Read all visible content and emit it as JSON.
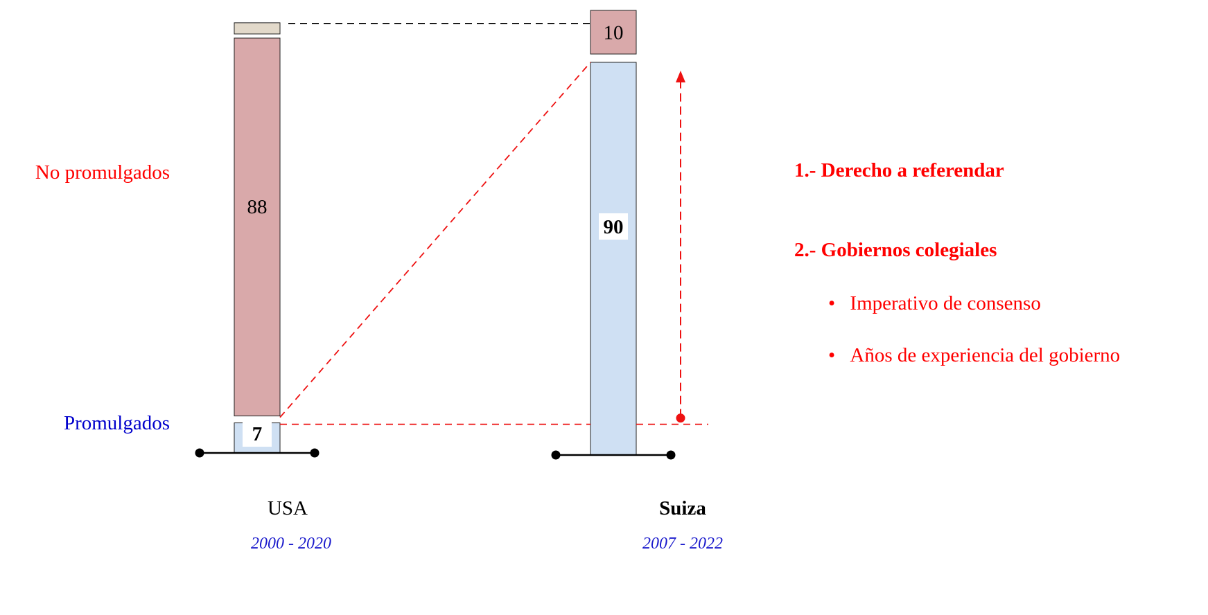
{
  "chart_data": {
    "type": "bar",
    "stacked": true,
    "categories": [
      "USA",
      "Suiza"
    ],
    "periods": [
      "2000 - 2020",
      "2007 - 2022"
    ],
    "series": [
      {
        "name": "Promulgados",
        "values": [
          7,
          90
        ],
        "color": "#cfe0f3"
      },
      {
        "name": "No promulgados",
        "values": [
          88,
          10
        ],
        "color": "#d9a9aa"
      }
    ],
    "remainder": {
      "values": [
        5,
        0
      ],
      "color": "#e2d9ca"
    },
    "series_labels": {
      "no_promulgados": "No promulgados",
      "promulgados": "Promulgados"
    },
    "data_labels": {
      "usa_promulgados": "7",
      "usa_no_promulgados": "88",
      "suiza_promulgados": "90",
      "suiza_no_promulgados": "10"
    },
    "ylim": [
      0,
      100
    ]
  },
  "annotations": {
    "point1": "1.- Derecho a referendar",
    "point2": "2.- Gobiernos colegiales",
    "bullets": [
      "Imperativo de consenso",
      "Años de experiencia del gobierno"
    ],
    "bullet_char": "•"
  },
  "colors": {
    "red_text": "#ff0000",
    "blue_text": "#0000cc",
    "period_text": "#1a1acc",
    "guide_red": "#ee1111"
  }
}
